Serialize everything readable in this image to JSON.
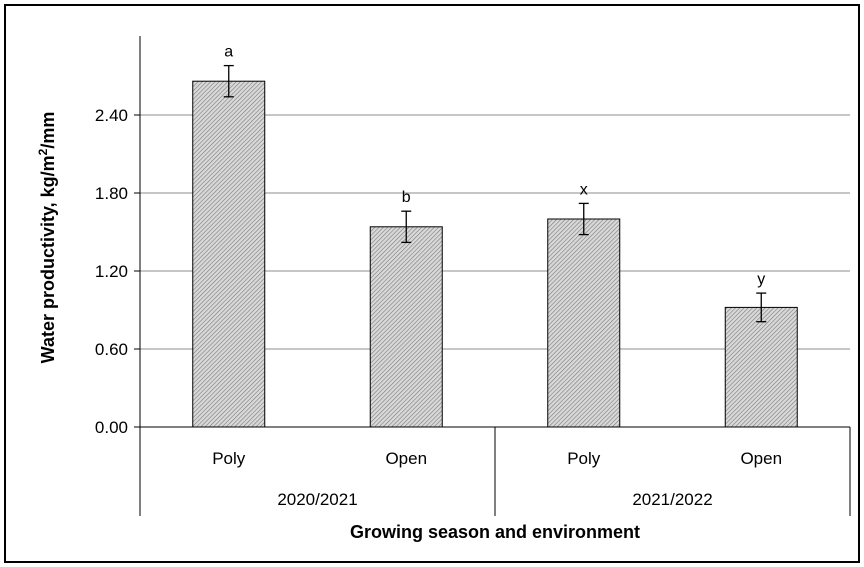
{
  "chart_data": {
    "type": "bar",
    "ylabel_main": "Water productivity, kg/m",
    "ylabel_sup": "2",
    "ylabel_tail": "/mm",
    "xlabel": "Growing season and environment",
    "ylim": [
      0,
      2.7
    ],
    "yticks": [
      "0.00",
      "0.60",
      "1.20",
      "1.80",
      "2.40"
    ],
    "ytick_values": [
      0,
      0.6,
      1.2,
      1.8,
      2.4
    ],
    "grid": true,
    "categories": [
      "Poly",
      "Open",
      "Poly",
      "Open"
    ],
    "groups": [
      {
        "label": "2020/2021",
        "members": [
          0,
          1
        ]
      },
      {
        "label": "2021/2022",
        "members": [
          2,
          3
        ]
      }
    ],
    "values": [
      2.66,
      1.54,
      1.6,
      0.92
    ],
    "errors": [
      0.12,
      0.12,
      0.12,
      0.11
    ],
    "significance": [
      "a",
      "b",
      "x",
      "y"
    ],
    "bar_color": "#c8c8c8"
  }
}
